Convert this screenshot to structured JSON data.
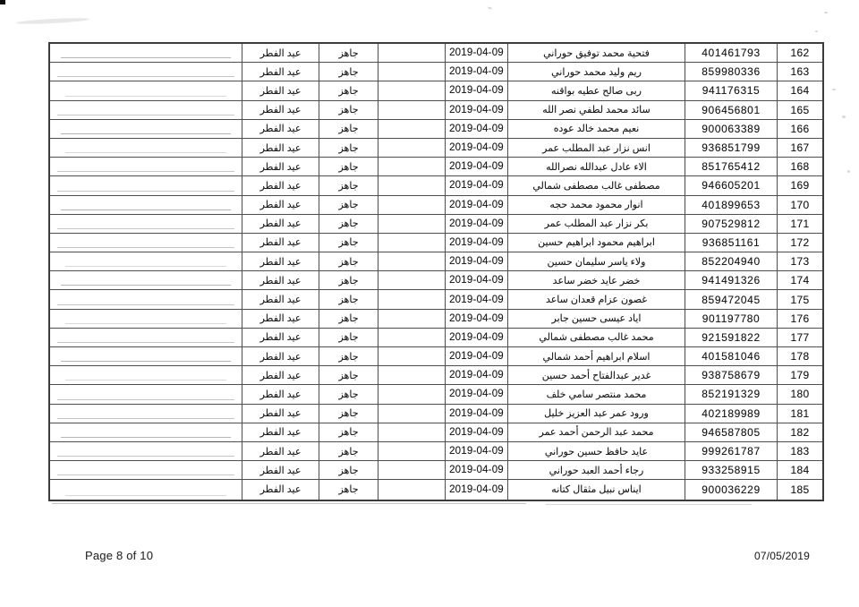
{
  "footer": {
    "page_label": "Page 8 of 10",
    "print_date": "07/05/2019"
  },
  "table": {
    "rows": [
      {
        "no": "162",
        "id": "401461793",
        "name": "فتحية محمد توفيق حوراني",
        "date": "2019-04-09",
        "status": "جاهز",
        "occasion": "عيد الفطر"
      },
      {
        "no": "163",
        "id": "859980336",
        "name": "ريم وليد محمد حوراني",
        "date": "2019-04-09",
        "status": "جاهز",
        "occasion": "عيد الفطر"
      },
      {
        "no": "164",
        "id": "941176315",
        "name": "ربى صالح عطيه بواقنه",
        "date": "2019-04-09",
        "status": "جاهز",
        "occasion": "عيد الفطر"
      },
      {
        "no": "165",
        "id": "906456801",
        "name": "سائد محمد لطفي نصر الله",
        "date": "2019-04-09",
        "status": "جاهز",
        "occasion": "عيد الفطر"
      },
      {
        "no": "166",
        "id": "900063389",
        "name": "نعيم محمد خالد عوده",
        "date": "2019-04-09",
        "status": "جاهز",
        "occasion": "عيد الفطر"
      },
      {
        "no": "167",
        "id": "936851799",
        "name": "انس نزار عبد المطلب عمر",
        "date": "2019-04-09",
        "status": "جاهز",
        "occasion": "عيد الفطر"
      },
      {
        "no": "168",
        "id": "851765412",
        "name": "الاء عادل عبدالله نصرالله",
        "date": "2019-04-09",
        "status": "جاهز",
        "occasion": "عيد الفطر"
      },
      {
        "no": "169",
        "id": "946605201",
        "name": "مصطفى غالب مصطفى شمالي",
        "date": "2019-04-09",
        "status": "جاهز",
        "occasion": "عيد الفطر"
      },
      {
        "no": "170",
        "id": "401899653",
        "name": "انوار محمود محمد حجه",
        "date": "2019-04-09",
        "status": "جاهز",
        "occasion": "عيد الفطر"
      },
      {
        "no": "171",
        "id": "907529812",
        "name": "بكر نزار عبد المطلب عمر",
        "date": "2019-04-09",
        "status": "جاهز",
        "occasion": "عيد الفطر"
      },
      {
        "no": "172",
        "id": "936851161",
        "name": "ابراهيم محمود ابراهيم حسين",
        "date": "2019-04-09",
        "status": "جاهز",
        "occasion": "عيد الفطر"
      },
      {
        "no": "173",
        "id": "852204940",
        "name": "ولاء ياسر سليمان حسين",
        "date": "2019-04-09",
        "status": "جاهز",
        "occasion": "عيد الفطر"
      },
      {
        "no": "174",
        "id": "941491326",
        "name": "خضر عايد خضر ساعد",
        "date": "2019-04-09",
        "status": "جاهز",
        "occasion": "عيد الفطر"
      },
      {
        "no": "175",
        "id": "859472045",
        "name": "غصون عزام قعدان ساعد",
        "date": "2019-04-09",
        "status": "جاهز",
        "occasion": "عيد الفطر"
      },
      {
        "no": "176",
        "id": "901197780",
        "name": "اياد عيسى حسين جابر",
        "date": "2019-04-09",
        "status": "جاهز",
        "occasion": "عيد الفطر"
      },
      {
        "no": "177",
        "id": "921591822",
        "name": "محمد غالب مصطفى شمالي",
        "date": "2019-04-09",
        "status": "جاهز",
        "occasion": "عيد الفطر"
      },
      {
        "no": "178",
        "id": "401581046",
        "name": "اسلام ابراهيم أحمد شمالي",
        "date": "2019-04-09",
        "status": "جاهز",
        "occasion": "عيد الفطر"
      },
      {
        "no": "179",
        "id": "938758679",
        "name": "غدير عبدالفتاح أحمد حسين",
        "date": "2019-04-09",
        "status": "جاهز",
        "occasion": "عيد الفطر"
      },
      {
        "no": "180",
        "id": "852191329",
        "name": "محمد منتصر سامي خلف",
        "date": "2019-04-09",
        "status": "جاهز",
        "occasion": "عيد الفطر"
      },
      {
        "no": "181",
        "id": "402189989",
        "name": "ورود عمر عبد العزيز خليل",
        "date": "2019-04-09",
        "status": "جاهز",
        "occasion": "عيد الفطر"
      },
      {
        "no": "182",
        "id": "946587805",
        "name": "محمد عبد الرحمن أحمد عمر",
        "date": "2019-04-09",
        "status": "جاهز",
        "occasion": "عيد الفطر"
      },
      {
        "no": "183",
        "id": "999261787",
        "name": "عايد حافظ حسين حوراني",
        "date": "2019-04-09",
        "status": "جاهز",
        "occasion": "عيد الفطر"
      },
      {
        "no": "184",
        "id": "933258915",
        "name": "رجاء أحمد العبد حوراني",
        "date": "2019-04-09",
        "status": "جاهز",
        "occasion": "عيد الفطر"
      },
      {
        "no": "185",
        "id": "900036229",
        "name": "ايناس نبيل مثقال كتانه",
        "date": "2019-04-09",
        "status": "جاهز",
        "occasion": "عيد الفطر"
      }
    ]
  }
}
